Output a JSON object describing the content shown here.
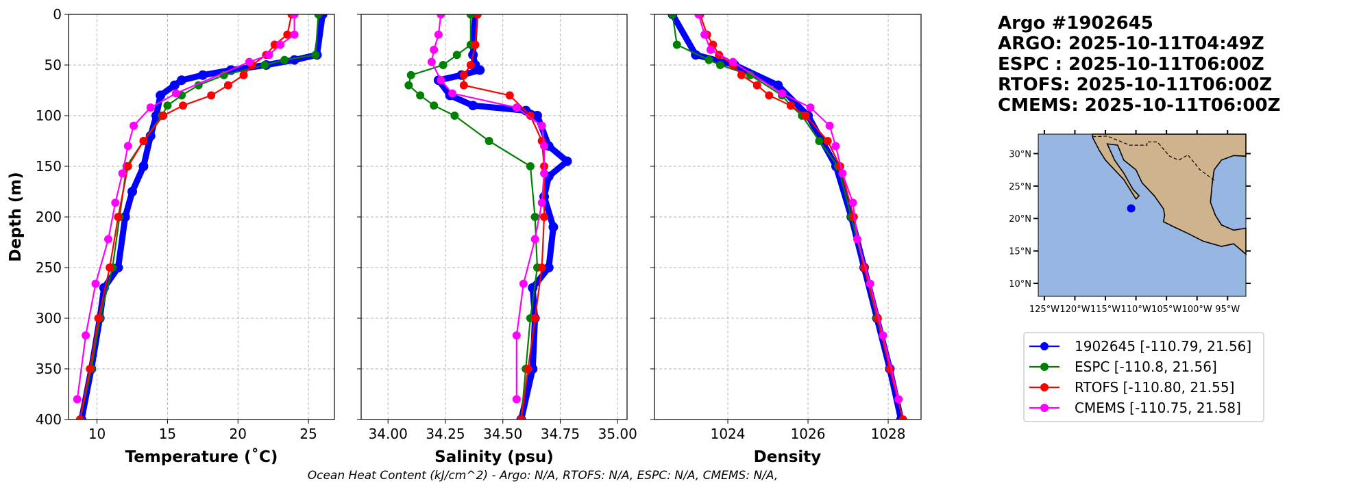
{
  "chart_data": [
    {
      "type": "line",
      "xlabel": "Temperature (˚C)",
      "ylabel": "Depth (m)",
      "xlim": [
        7.98,
        26.84
      ],
      "ylim": [
        400,
        0
      ],
      "xticks": [
        10,
        15,
        20,
        25
      ],
      "xtick_labels": [
        "10",
        "15",
        "20",
        "25"
      ],
      "yticks": [
        0,
        50,
        100,
        150,
        200,
        250,
        300,
        350,
        400
      ],
      "ytick_labels": [
        "0",
        "50",
        "100",
        "150",
        "200",
        "250",
        "300",
        "350",
        "400"
      ],
      "grid": true,
      "series": [
        {
          "name": "1902645",
          "depth": [
            0,
            40,
            45,
            50,
            55,
            60,
            65,
            70,
            80,
            100,
            120,
            150,
            175,
            200,
            250,
            270,
            300,
            350,
            400
          ],
          "values": [
            26,
            25.6,
            24,
            22,
            19.5,
            17.5,
            16,
            15.5,
            14.5,
            14.2,
            13.8,
            13.3,
            12.5,
            12.0,
            11.5,
            10.5,
            10.2,
            9.6,
            8.9
          ]
        },
        {
          "name": "ESPC",
          "depth": [
            0,
            40,
            45,
            50,
            60,
            70,
            80,
            90,
            100,
            125,
            150,
            200,
            250,
            300,
            350,
            400
          ],
          "values": [
            25.7,
            25.5,
            23.3,
            21.9,
            19,
            17.2,
            16,
            15,
            14.6,
            13.3,
            12.1,
            11.6,
            11.1,
            10.2,
            9.6,
            8.8
          ]
        },
        {
          "name": "RTOFS",
          "depth": [
            0,
            20,
            30,
            40,
            50,
            60,
            70,
            80,
            90,
            100,
            125,
            150,
            200,
            250,
            300,
            350,
            400
          ],
          "values": [
            23.8,
            23.5,
            22.6,
            22,
            21,
            20.4,
            19.3,
            18.1,
            16.1,
            14.7,
            13.3,
            12.2,
            11.5,
            10.9,
            10.1,
            9.5,
            8.8
          ]
        },
        {
          "name": "CMEMS",
          "depth": [
            0,
            20,
            30,
            40,
            47,
            78,
            92,
            110,
            130,
            157,
            186,
            222,
            266,
            317,
            380
          ],
          "values": [
            24,
            24,
            23,
            22.2,
            20.8,
            15.6,
            13.8,
            12.6,
            12.2,
            11.8,
            11.3,
            10.8,
            9.9,
            9.2,
            8.6
          ]
        }
      ]
    },
    {
      "type": "line",
      "xlabel": "Salinity (psu)",
      "ylabel": "",
      "xlim": [
        33.883,
        35.041
      ],
      "ylim": [
        400,
        0
      ],
      "xticks": [
        34.0,
        34.25,
        34.5,
        34.75,
        35.0
      ],
      "xtick_labels": [
        "34.00",
        "34.25",
        "34.50",
        "34.75",
        "35.00"
      ],
      "grid": true,
      "series": [
        {
          "name": "1902645",
          "depth": [
            0,
            40,
            50,
            55,
            60,
            65,
            80,
            90,
            95,
            100,
            130,
            145,
            160,
            180,
            210,
            250,
            270,
            300,
            350,
            400
          ],
          "values": [
            34.38,
            34.37,
            34.38,
            34.4,
            34.32,
            34.22,
            34.27,
            34.37,
            34.6,
            34.65,
            34.7,
            34.78,
            34.7,
            34.68,
            34.72,
            34.7,
            34.63,
            34.64,
            34.63,
            34.58
          ]
        },
        {
          "name": "ESPC",
          "depth": [
            0,
            30,
            40,
            50,
            60,
            70,
            80,
            90,
            100,
            125,
            150,
            200,
            250,
            300,
            350,
            400
          ],
          "values": [
            34.36,
            34.36,
            34.3,
            34.24,
            34.1,
            34.09,
            34.14,
            34.2,
            34.29,
            34.44,
            34.62,
            34.64,
            34.65,
            34.62,
            34.6,
            34.58
          ]
        },
        {
          "name": "RTOFS",
          "depth": [
            0,
            30,
            50,
            60,
            70,
            80,
            100,
            125,
            150,
            200,
            250,
            300,
            350,
            400
          ],
          "values": [
            34.39,
            34.38,
            34.36,
            34.33,
            34.33,
            34.53,
            34.62,
            34.67,
            34.68,
            34.68,
            34.67,
            34.64,
            34.61,
            34.58
          ]
        },
        {
          "name": "CMEMS",
          "depth": [
            0,
            20,
            35,
            47,
            65,
            78,
            92,
            110,
            130,
            157,
            186,
            222,
            266,
            317,
            380
          ],
          "values": [
            34.23,
            34.22,
            34.2,
            34.19,
            34.23,
            34.28,
            34.56,
            34.67,
            34.68,
            34.68,
            34.67,
            34.64,
            34.59,
            34.56,
            34.56
          ]
        }
      ]
    },
    {
      "type": "line",
      "xlabel": "Density",
      "ylabel": "",
      "xlim": [
        1022.17,
        1028.82
      ],
      "ylim": [
        400,
        0
      ],
      "xticks": [
        1024,
        1026,
        1028
      ],
      "xtick_labels": [
        "1024",
        "1026",
        "1028"
      ],
      "grid": true,
      "series": [
        {
          "name": "1902645",
          "depth": [
            0,
            40,
            50,
            70,
            100,
            150,
            200,
            250,
            300,
            350,
            400
          ],
          "values": [
            1022.62,
            1023.2,
            1024.17,
            1025.25,
            1026.0,
            1026.7,
            1027.08,
            1027.4,
            1027.72,
            1028.04,
            1028.32
          ]
        },
        {
          "name": "ESPC",
          "depth": [
            0,
            30,
            45,
            50,
            60,
            80,
            90,
            100,
            125,
            150,
            200,
            250,
            300,
            350,
            400
          ],
          "values": [
            1022.62,
            1022.73,
            1023.53,
            1023.81,
            1024.56,
            1025.35,
            1025.57,
            1025.85,
            1026.28,
            1026.75,
            1027.08,
            1027.4,
            1027.72,
            1028.04,
            1028.37
          ]
        },
        {
          "name": "RTOFS",
          "depth": [
            0,
            20,
            30,
            40,
            50,
            60,
            70,
            80,
            90,
            100,
            125,
            150,
            200,
            250,
            300,
            350,
            400
          ],
          "values": [
            1023.31,
            1023.48,
            1023.63,
            1023.78,
            1024.13,
            1024.34,
            1024.73,
            1025.03,
            1025.57,
            1025.94,
            1026.49,
            1026.8,
            1027.14,
            1027.4,
            1027.74,
            1028.04,
            1028.37
          ]
        },
        {
          "name": "CMEMS",
          "depth": [
            0,
            20,
            35,
            47,
            78,
            92,
            110,
            130,
            157,
            186,
            222,
            266,
            317,
            380
          ],
          "values": [
            1023.27,
            1023.42,
            1023.57,
            1024.13,
            1025.35,
            1026.06,
            1026.54,
            1026.69,
            1026.86,
            1027.12,
            1027.23,
            1027.55,
            1027.87,
            1028.26
          ]
        }
      ]
    }
  ],
  "colors": {
    "1902645": "#0000ff",
    "ESPC": "#008000",
    "RTOFS": "#ff0000",
    "CMEMS": "#ff00ff",
    "ocean": "#97b6e1",
    "land": "#cfb38c"
  },
  "title_lines": [
    "Argo #1902645",
    "ARGO: 2025-10-11T04:49Z",
    "ESPC : 2025-10-11T06:00Z",
    "RTOFS: 2025-10-11T06:00Z",
    "CMEMS: 2025-10-11T06:00Z"
  ],
  "map": {
    "lon_range": [
      -126,
      -92
    ],
    "lat_range": [
      8,
      33
    ],
    "lon_ticks": [
      -125,
      -120,
      -115,
      -110,
      -105,
      -100,
      -95
    ],
    "lon_tick_labels": [
      "125°W",
      "120°W",
      "115°W",
      "110°W",
      "105°W",
      "100°W",
      "95°W"
    ],
    "lat_ticks": [
      10,
      15,
      20,
      25,
      30
    ],
    "lat_tick_labels": [
      "10°N",
      "15°N",
      "20°N",
      "25°N",
      "30°N"
    ],
    "float_position": [
      -110.79,
      21.56
    ]
  },
  "legend": [
    {
      "key": "1902645",
      "label": "1902645 [-110.79, 21.56]"
    },
    {
      "key": "ESPC",
      "label": "ESPC [-110.8, 21.56]"
    },
    {
      "key": "RTOFS",
      "label": "RTOFS [-110.80, 21.55]"
    },
    {
      "key": "CMEMS",
      "label": "CMEMS [-110.75, 21.58]"
    }
  ],
  "footer": "Ocean Heat Content (kJ/cm^2) - Argo: N/A,  RTOFS: N/A,  ESPC: N/A,  CMEMS: N/A,"
}
